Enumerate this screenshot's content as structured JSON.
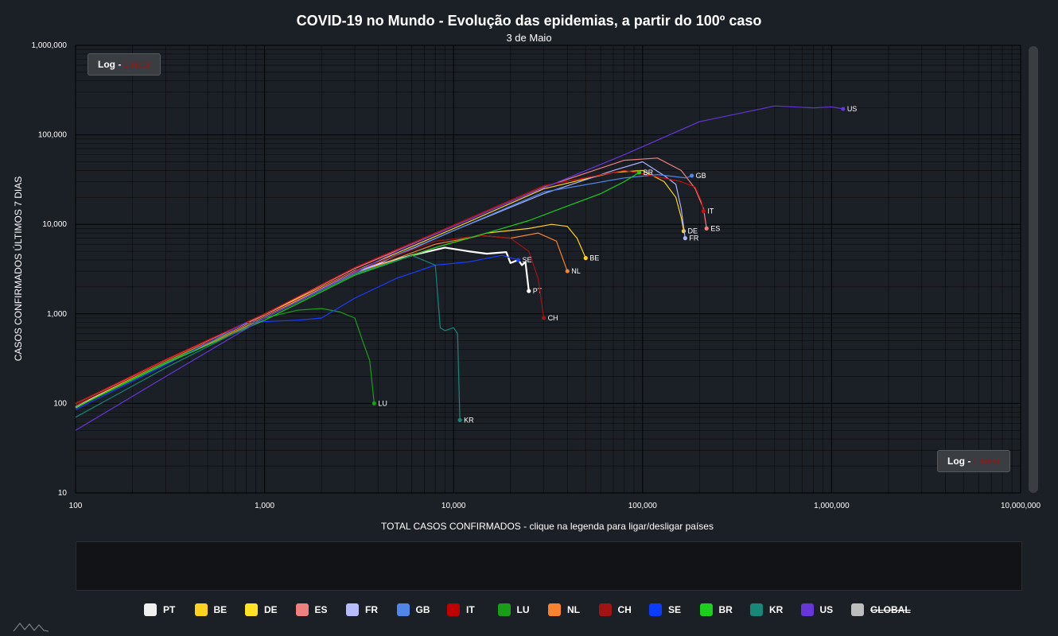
{
  "header": {
    "title": "COVID-19 no Mundo - Evolução das epidemias, a partir do 100º caso",
    "subtitle": "3 de Maio"
  },
  "toggles": {
    "log_label": "Log",
    "separator": " - ",
    "linear_label": "Linear"
  },
  "colors": {
    "background": "#1b1f26",
    "grid": "#000000",
    "linear_inactive": "#8b1a1a"
  },
  "chart_data": {
    "type": "line",
    "title": "COVID-19 no Mundo - Evolução das epidemias, a partir do 100º caso",
    "subtitle": "3 de Maio",
    "xlabel": "TOTAL CASOS CONFIRMADOS - clique na legenda para ligar/desligar países",
    "ylabel": "CASOS CONFIRMADOS ÚLTIMOS 7 DIAS",
    "x_scale": "log",
    "y_scale": "log",
    "xlim": [
      100,
      10000000
    ],
    "ylim": [
      10,
      1000000
    ],
    "x_ticks": [
      "100",
      "1,000",
      "10,000",
      "100,000",
      "1,000,000",
      "10,000,000"
    ],
    "y_ticks": [
      "1,000,000",
      "100,000",
      "10,000",
      "1,000",
      "100",
      "10"
    ],
    "grid": true,
    "legend_position": "bottom",
    "series": [
      {
        "name": "PT",
        "color": "#ffffff",
        "x": [
          100,
          300,
          1000,
          3000,
          6000,
          9000,
          12000,
          15000,
          19000,
          20000,
          22000,
          23000,
          24000,
          25000
        ],
        "y": [
          90,
          300,
          950,
          3000,
          4500,
          5500,
          5000,
          4700,
          4900,
          3700,
          4000,
          3500,
          3800,
          1800
        ]
      },
      {
        "name": "BE",
        "color": "#ffd21f",
        "x": [
          100,
          300,
          1000,
          3000,
          8000,
          15000,
          25000,
          33000,
          40000,
          45000,
          50000
        ],
        "y": [
          95,
          290,
          950,
          2800,
          5500,
          8000,
          9000,
          10000,
          9500,
          7000,
          4200
        ]
      },
      {
        "name": "DE",
        "color": "#ffd21f",
        "x": [
          100,
          300,
          1000,
          3000,
          10000,
          30000,
          70000,
          100000,
          130000,
          150000,
          160000,
          165000
        ],
        "y": [
          100,
          300,
          1000,
          3000,
          9000,
          25000,
          38000,
          40000,
          30000,
          20000,
          12000,
          8400
        ]
      },
      {
        "name": "ES",
        "color": "#f08080",
        "x": [
          100,
          300,
          1000,
          3000,
          10000,
          30000,
          80000,
          120000,
          160000,
          190000,
          210000,
          218000
        ],
        "y": [
          100,
          300,
          1000,
          3200,
          9500,
          26000,
          52000,
          55000,
          40000,
          25000,
          15000,
          9000
        ]
      },
      {
        "name": "FR",
        "color": "#aab4ff",
        "x": [
          100,
          300,
          1000,
          3000,
          10000,
          30000,
          70000,
          100000,
          130000,
          150000,
          160000,
          168000
        ],
        "y": [
          90,
          280,
          900,
          2800,
          8500,
          22000,
          40000,
          50000,
          35000,
          28000,
          15000,
          7000
        ]
      },
      {
        "name": "GB",
        "color": "#4f86e8",
        "x": [
          100,
          300,
          1000,
          3000,
          10000,
          30000,
          80000,
          120000,
          150000,
          170000,
          182000
        ],
        "y": [
          90,
          280,
          900,
          2900,
          8500,
          23000,
          33000,
          36000,
          34000,
          33000,
          35000
        ]
      },
      {
        "name": "IT",
        "color": "#c41010",
        "x": [
          100,
          300,
          1000,
          3000,
          10000,
          30000,
          80000,
          120000,
          160000,
          190000,
          205000,
          210000
        ],
        "y": [
          100,
          310,
          1000,
          3300,
          9800,
          27000,
          40000,
          34000,
          30000,
          26000,
          18000,
          14000
        ]
      },
      {
        "name": "LU",
        "color": "#1a9e1a",
        "x": [
          100,
          300,
          1000,
          1500,
          2000,
          2500,
          3000,
          3300,
          3600,
          3800
        ],
        "y": [
          90,
          290,
          900,
          1100,
          1150,
          1050,
          900,
          500,
          300,
          100
        ]
      },
      {
        "name": "NL",
        "color": "#f7832f",
        "x": [
          100,
          300,
          1000,
          3000,
          8000,
          14000,
          20000,
          28000,
          35000,
          40000
        ],
        "y": [
          90,
          280,
          900,
          2800,
          6000,
          7500,
          7000,
          8000,
          6500,
          3000
        ]
      },
      {
        "name": "CH",
        "color": "#a01414",
        "x": [
          100,
          300,
          1000,
          3000,
          8000,
          14000,
          20000,
          25000,
          28000,
          30000
        ],
        "y": [
          95,
          300,
          950,
          3000,
          6500,
          7500,
          7000,
          5000,
          2500,
          900
        ]
      },
      {
        "name": "SE",
        "color": "#1a3dff",
        "x": [
          100,
          300,
          800,
          1500,
          2000,
          3000,
          5000,
          8000,
          12000,
          18000,
          22000
        ],
        "y": [
          85,
          270,
          800,
          850,
          900,
          1500,
          2500,
          3500,
          3800,
          4500,
          4000
        ]
      },
      {
        "name": "BR",
        "color": "#1ccf1c",
        "x": [
          100,
          300,
          1000,
          3000,
          8000,
          15000,
          25000,
          40000,
          60000,
          80000,
          96000
        ],
        "y": [
          90,
          280,
          850,
          2700,
          5500,
          8000,
          11000,
          16000,
          22000,
          30000,
          38000
        ]
      },
      {
        "name": "KR",
        "color": "#17877a",
        "x": [
          100,
          300,
          1000,
          3000,
          6000,
          8000,
          8500,
          9000,
          10000,
          10500,
          10800
        ],
        "y": [
          70,
          250,
          900,
          2800,
          4500,
          3500,
          700,
          650,
          700,
          600,
          65
        ]
      },
      {
        "name": "US",
        "color": "#6636d9",
        "x": [
          100,
          300,
          1000,
          5000,
          20000,
          80000,
          200000,
          500000,
          800000,
          1000000,
          1150000
        ],
        "y": [
          50,
          200,
          900,
          5000,
          18000,
          60000,
          140000,
          210000,
          200000,
          205000,
          195000
        ]
      }
    ]
  },
  "legend": [
    {
      "name": "PT",
      "color": "#f0f0f0"
    },
    {
      "name": "BE",
      "color": "#ffd21f"
    },
    {
      "name": "DE",
      "color": "#ffe224"
    },
    {
      "name": "ES",
      "color": "#f08080"
    },
    {
      "name": "FR",
      "color": "#b8bcff"
    },
    {
      "name": "GB",
      "color": "#4f86e8"
    },
    {
      "name": "IT",
      "color": "#c00000"
    },
    {
      "name": "LU",
      "color": "#1a9e1a"
    },
    {
      "name": "NL",
      "color": "#f7832f"
    },
    {
      "name": "CH",
      "color": "#a01414"
    },
    {
      "name": "SE",
      "color": "#0a3dff"
    },
    {
      "name": "BR",
      "color": "#1ccf1c"
    },
    {
      "name": "KR",
      "color": "#17877a"
    },
    {
      "name": "US",
      "color": "#6636d9"
    },
    {
      "name": "GLOBAL",
      "color": "#bdbdbd"
    }
  ]
}
